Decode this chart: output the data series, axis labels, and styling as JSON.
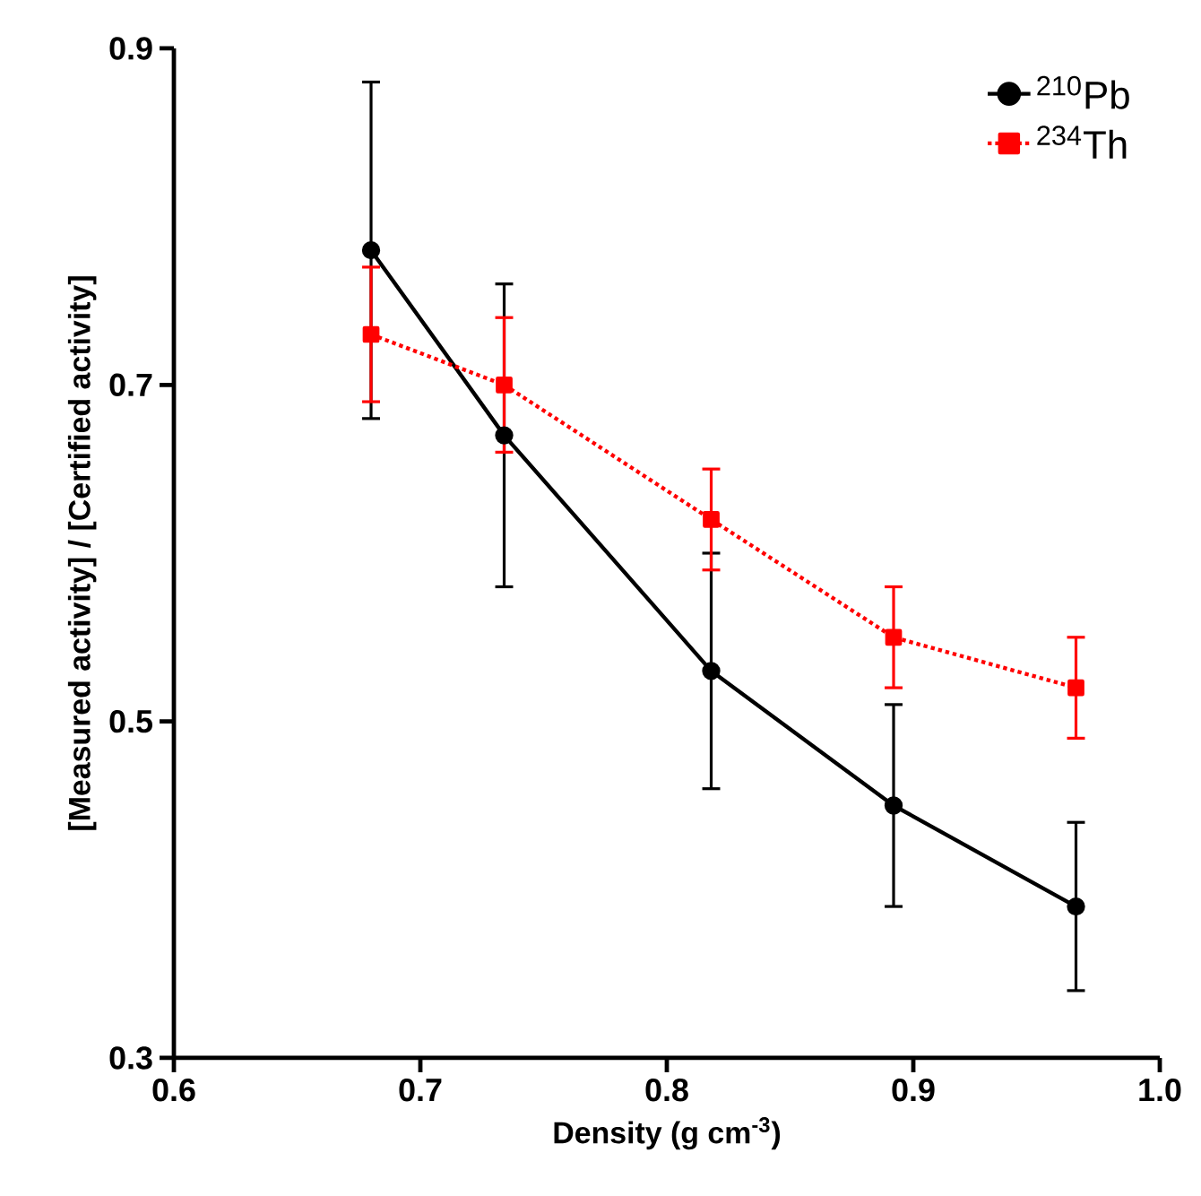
{
  "chart_data": {
    "type": "line",
    "xlabel": "Density (g cm$^{-3}$)",
    "ylabel": "[Measured activity] / [Certified activity]",
    "x": [
      0.68,
      0.734,
      0.818,
      0.892,
      0.966
    ],
    "series": [
      {
        "name": "$^{210}$Pb",
        "color": "#000000",
        "marker": "circle",
        "line_style": "solid",
        "values": [
          0.78,
          0.67,
          0.53,
          0.45,
          0.39
        ],
        "errors": [
          0.1,
          0.09,
          0.07,
          0.06,
          0.05
        ]
      },
      {
        "name": "$^{234}$Th",
        "color": "#ff0000",
        "marker": "square",
        "line_style": "dotted",
        "values": [
          0.73,
          0.7,
          0.62,
          0.55,
          0.52
        ],
        "errors": [
          0.04,
          0.04,
          0.03,
          0.03,
          0.03
        ]
      }
    ],
    "xlim": [
      0.6,
      1.0
    ],
    "ylim": [
      0.3,
      0.9
    ],
    "xticks": [
      0.6,
      0.7,
      0.8,
      0.9,
      {
        "value": 1.0,
        "label": "1.0"
      }
    ],
    "yticks": [
      0.3,
      0.5,
      0.7,
      0.9
    ],
    "legend": "top right",
    "grid": false
  }
}
